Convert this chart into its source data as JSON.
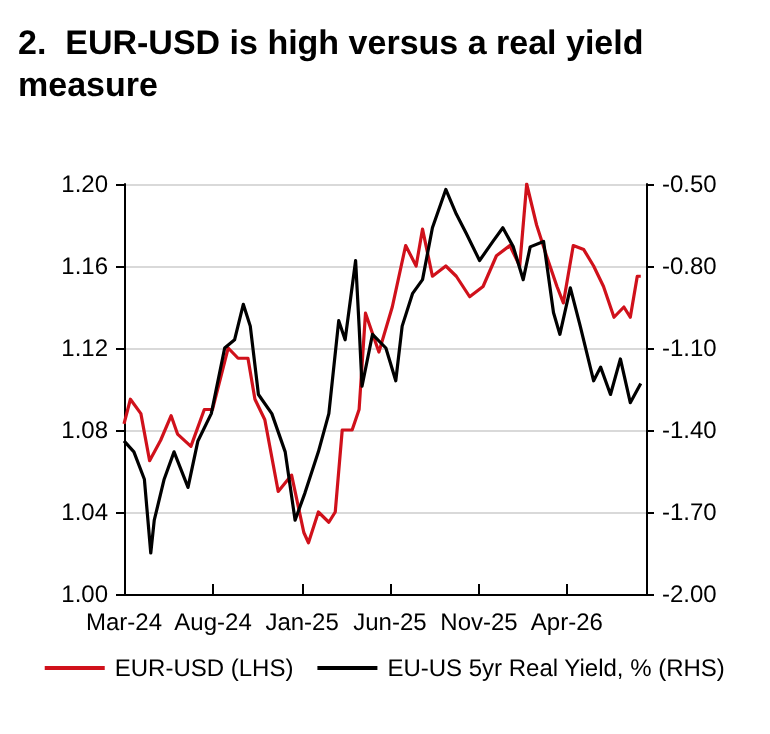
{
  "chart_data": {
    "type": "line",
    "title": "2.  EUR-USD is high versus a real yield measure",
    "xlim": [
      "2024-03-01",
      "2026-08-15"
    ],
    "xticks": [
      {
        "value": "2024-03-01",
        "label": "Mar-24"
      },
      {
        "value": "2024-08-01",
        "label": "Aug-24"
      },
      {
        "value": "2025-01-01",
        "label": "Jan-25"
      },
      {
        "value": "2025-06-01",
        "label": "Jun-25"
      },
      {
        "value": "2025-11-01",
        "label": "Nov-25"
      },
      {
        "value": "2026-04-01",
        "label": "Apr-26"
      }
    ],
    "ylim": [
      1.0,
      1.2
    ],
    "yticks": [
      {
        "value": 1.0,
        "label": "1.00"
      },
      {
        "value": 1.04,
        "label": "1.04"
      },
      {
        "value": 1.08,
        "label": "1.08"
      },
      {
        "value": 1.12,
        "label": "1.12"
      },
      {
        "value": 1.16,
        "label": "1.16"
      },
      {
        "value": 1.2,
        "label": "1.20"
      }
    ],
    "y2lim": [
      -2.0,
      -0.5
    ],
    "y2ticks": [
      {
        "value": -2.0,
        "label": "-2.00"
      },
      {
        "value": -1.7,
        "label": "-1.70"
      },
      {
        "value": -1.4,
        "label": "-1.40"
      },
      {
        "value": -1.1,
        "label": "-1.10"
      },
      {
        "value": -0.8,
        "label": "-0.80"
      },
      {
        "value": -0.5,
        "label": "-0.50"
      }
    ],
    "grid": "y",
    "legend": "bottom",
    "series": [
      {
        "name": "EUR-USD (LHS)",
        "color": "#d0111b",
        "x": [
          "2024-03-01",
          "2024-03-12",
          "2024-03-30",
          "2024-04-14",
          "2024-05-03",
          "2024-05-21",
          "2024-06-01",
          "2024-06-24",
          "2024-07-17",
          "2024-07-31",
          "2024-08-27",
          "2024-09-13",
          "2024-09-30",
          "2024-10-12",
          "2024-10-29",
          "2024-11-21",
          "2024-12-14",
          "2025-01-04",
          "2025-01-12",
          "2025-01-29",
          "2025-02-16",
          "2025-02-27",
          "2025-03-11",
          "2025-03-28",
          "2025-04-09",
          "2025-04-20",
          "2025-05-13",
          "2025-06-05",
          "2025-06-28",
          "2025-07-16",
          "2025-07-27",
          "2025-08-13",
          "2025-09-05",
          "2025-09-23",
          "2025-10-16",
          "2025-11-08",
          "2025-12-01",
          "2025-12-24",
          "2026-01-10",
          "2026-01-22",
          "2026-02-08",
          "2026-02-25",
          "2026-03-15",
          "2026-03-26",
          "2026-04-12",
          "2026-04-30",
          "2026-05-17",
          "2026-06-03",
          "2026-06-21",
          "2026-07-08",
          "2026-07-19",
          "2026-07-31",
          "2026-08-06"
        ],
        "values": [
          1.083,
          1.095,
          1.088,
          1.065,
          1.075,
          1.087,
          1.078,
          1.072,
          1.09,
          1.09,
          1.12,
          1.115,
          1.115,
          1.095,
          1.085,
          1.05,
          1.058,
          1.03,
          1.025,
          1.04,
          1.035,
          1.04,
          1.08,
          1.08,
          1.09,
          1.137,
          1.118,
          1.14,
          1.17,
          1.16,
          1.178,
          1.155,
          1.16,
          1.155,
          1.145,
          1.15,
          1.165,
          1.17,
          1.16,
          1.2,
          1.18,
          1.165,
          1.15,
          1.142,
          1.17,
          1.168,
          1.16,
          1.15,
          1.135,
          1.14,
          1.135,
          1.155,
          1.155
        ]
      },
      {
        "name": "EU-US 5yr Real Yield, % (RHS)",
        "color": "#000000",
        "axis": "y2",
        "x": [
          "2024-03-01",
          "2024-03-18",
          "2024-04-05",
          "2024-04-16",
          "2024-04-22",
          "2024-05-09",
          "2024-05-26",
          "2024-06-19",
          "2024-07-06",
          "2024-07-29",
          "2024-08-21",
          "2024-09-07",
          "2024-09-22",
          "2024-10-04",
          "2024-10-18",
          "2024-11-10",
          "2024-12-03",
          "2024-12-20",
          "2025-01-06",
          "2025-01-29",
          "2025-02-16",
          "2025-03-05",
          "2025-03-16",
          "2025-04-03",
          "2025-04-09",
          "2025-04-14",
          "2025-05-02",
          "2025-05-25",
          "2025-06-11",
          "2025-06-22",
          "2025-07-10",
          "2025-07-27",
          "2025-08-13",
          "2025-09-05",
          "2025-09-23",
          "2025-10-10",
          "2025-11-02",
          "2025-11-25",
          "2025-12-12",
          "2025-12-30",
          "2026-01-16",
          "2026-01-28",
          "2026-02-20",
          "2026-03-09",
          "2026-03-20",
          "2026-04-07",
          "2026-04-24",
          "2026-05-17",
          "2026-05-29",
          "2026-06-15",
          "2026-07-02",
          "2026-07-19",
          "2026-08-06"
        ],
        "values": [
          -1.44,
          -1.48,
          -1.58,
          -1.85,
          -1.73,
          -1.58,
          -1.48,
          -1.61,
          -1.44,
          -1.34,
          -1.1,
          -1.07,
          -0.94,
          -1.02,
          -1.27,
          -1.34,
          -1.48,
          -1.73,
          -1.63,
          -1.48,
          -1.34,
          -1.0,
          -1.07,
          -0.78,
          -1.02,
          -1.24,
          -1.05,
          -1.1,
          -1.22,
          -1.02,
          -0.9,
          -0.85,
          -0.66,
          -0.52,
          -0.61,
          -0.68,
          -0.78,
          -0.71,
          -0.66,
          -0.73,
          -0.85,
          -0.73,
          -0.71,
          -0.97,
          -1.05,
          -0.88,
          -1.02,
          -1.22,
          -1.17,
          -1.27,
          -1.14,
          -1.3,
          -1.23
        ]
      }
    ]
  }
}
